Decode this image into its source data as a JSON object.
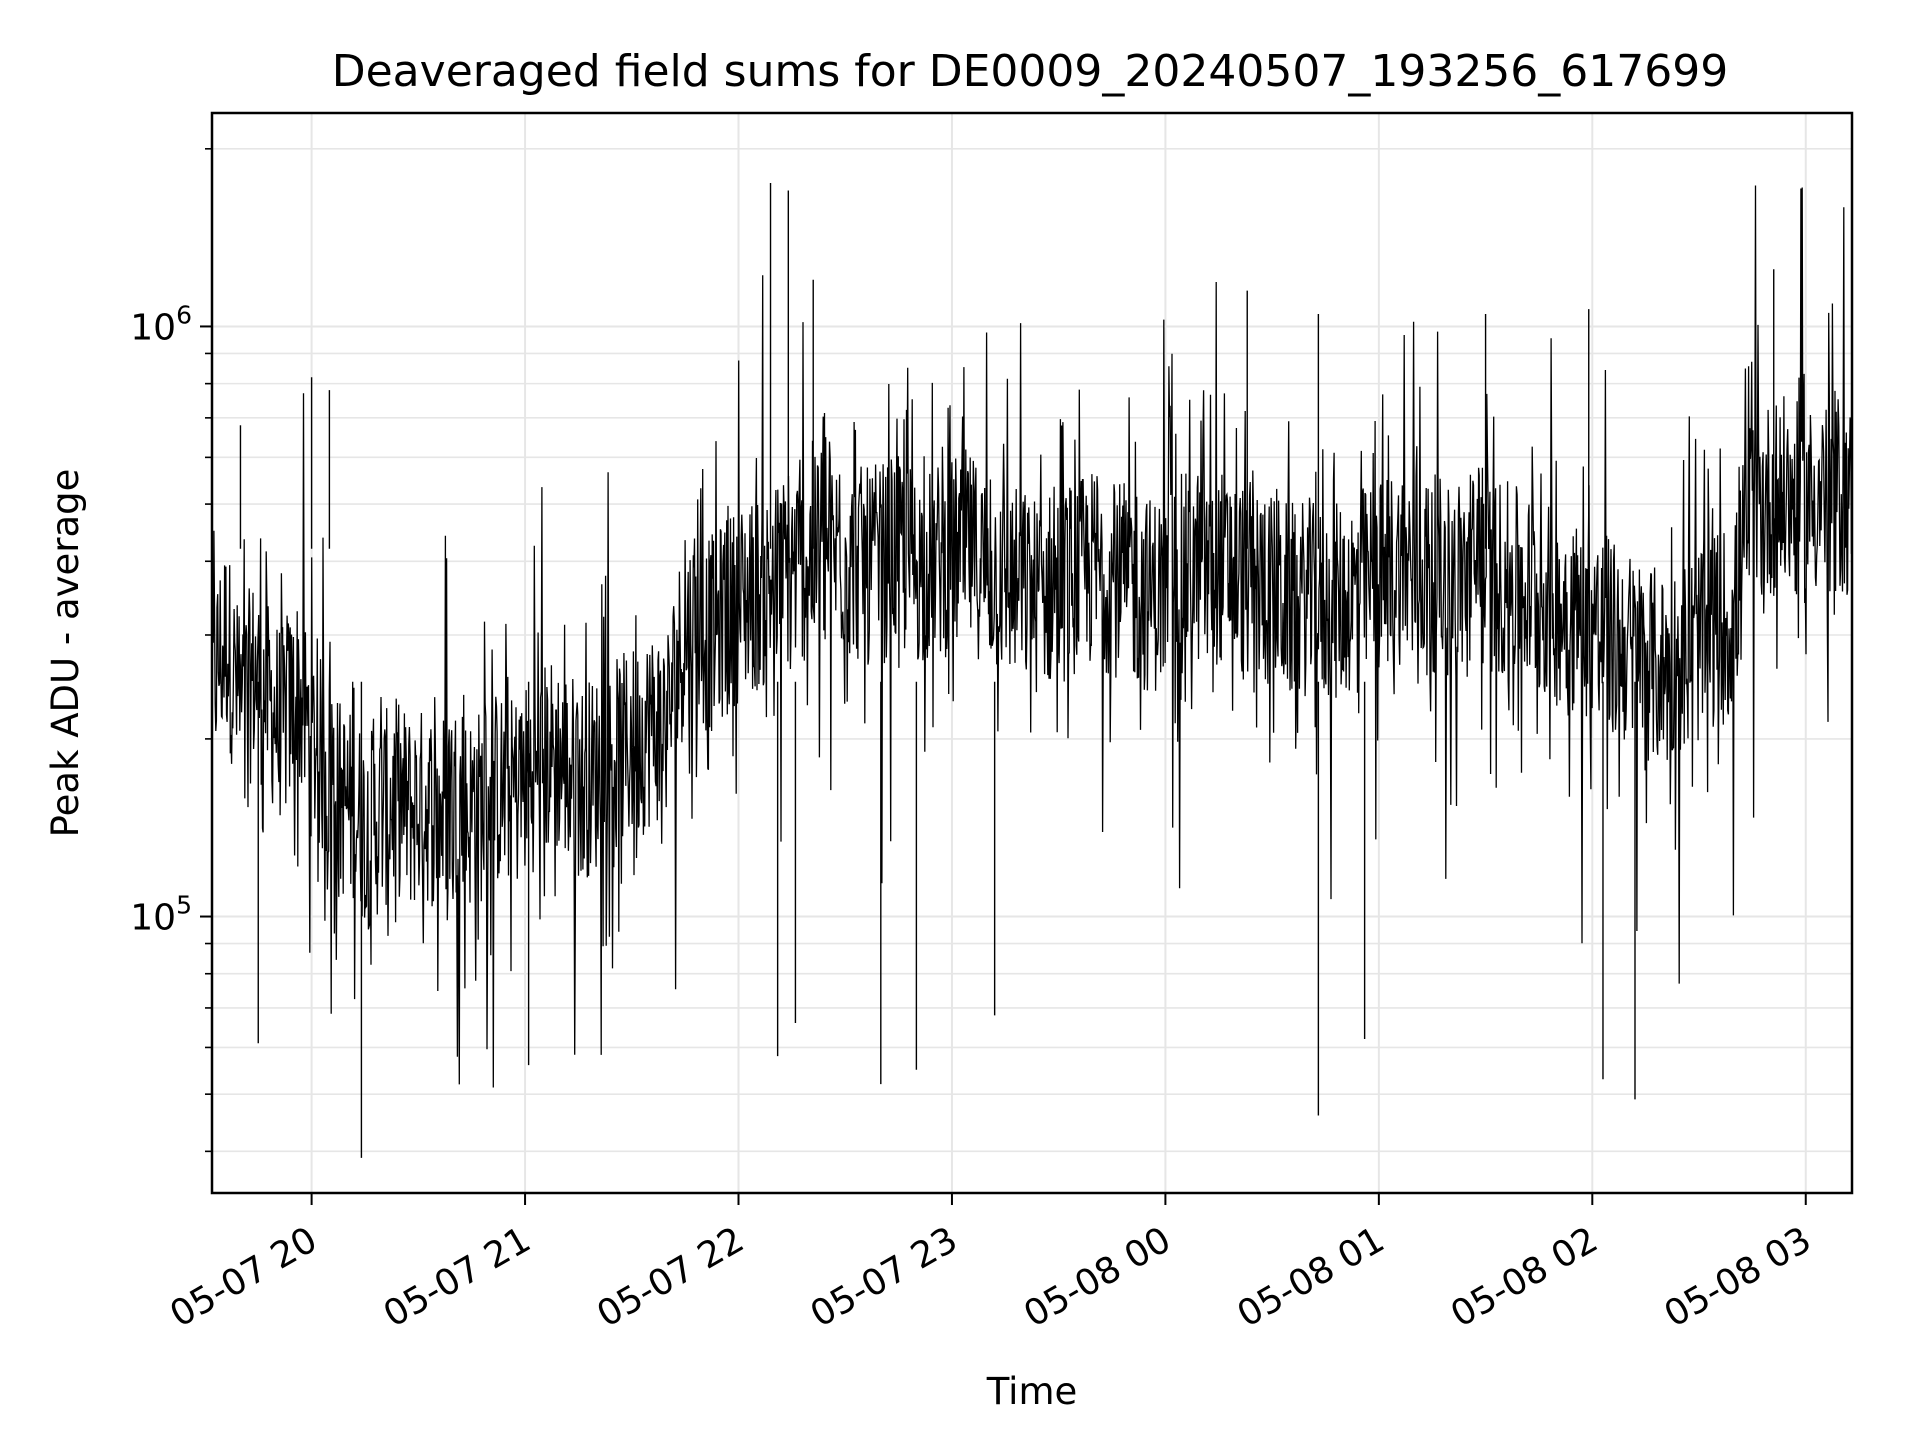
{
  "chart_data": {
    "type": "line",
    "title": "Deaveraged field sums for DE0009_20240507_193256_617699",
    "xlabel": "Time",
    "ylabel": "Peak ADU - average",
    "x_axis": {
      "kind": "datetime",
      "range": [
        "2024-05-07 19:32",
        "2024-05-08 03:13"
      ],
      "ticks": [
        {
          "t": "2024-05-07 20:00",
          "label": "05-07 20"
        },
        {
          "t": "2024-05-07 21:00",
          "label": "05-07 21"
        },
        {
          "t": "2024-05-07 22:00",
          "label": "05-07 22"
        },
        {
          "t": "2024-05-07 23:00",
          "label": "05-07 23"
        },
        {
          "t": "2024-05-08 00:00",
          "label": "05-08 00"
        },
        {
          "t": "2024-05-08 01:00",
          "label": "05-08 01"
        },
        {
          "t": "2024-05-08 02:00",
          "label": "05-08 02"
        },
        {
          "t": "2024-05-08 03:00",
          "label": "05-08 03"
        }
      ]
    },
    "y_axis": {
      "scale": "log",
      "range": [
        34000,
        2300000
      ],
      "ticks": [
        {
          "value": 100000,
          "base": "10",
          "exp": "5"
        },
        {
          "value": 1000000,
          "base": "10",
          "exp": "6"
        }
      ]
    },
    "grid": true,
    "line_color": "#000000",
    "series": [
      {
        "points": [
          [
            "2024-05-07 19:32",
            250000
          ],
          [
            "2024-05-07 19:36",
            300000
          ],
          [
            "2024-05-07 19:40",
            220000
          ],
          [
            "2024-05-07 19:44",
            260000
          ],
          [
            "2024-05-07 19:48",
            230000
          ],
          [
            "2024-05-07 19:52",
            210000
          ],
          [
            "2024-05-07 19:56",
            240000
          ],
          [
            "2024-05-07 20:00",
            200000
          ],
          [
            "2024-05-07 20:04",
            180000
          ],
          [
            "2024-05-07 20:08",
            160000
          ],
          [
            "2024-05-07 20:12",
            150000
          ],
          [
            "2024-05-07 20:16",
            140000
          ],
          [
            "2024-05-07 20:20",
            150000
          ],
          [
            "2024-05-07 20:24",
            160000
          ],
          [
            "2024-05-07 20:28",
            150000
          ],
          [
            "2024-05-07 20:32",
            155000
          ],
          [
            "2024-05-07 20:36",
            150000
          ],
          [
            "2024-05-07 20:40",
            160000
          ],
          [
            "2024-05-07 20:44",
            150000
          ],
          [
            "2024-05-07 20:48",
            155000
          ],
          [
            "2024-05-07 20:52",
            165000
          ],
          [
            "2024-05-07 20:56",
            160000
          ],
          [
            "2024-05-07 21:00",
            170000
          ],
          [
            "2024-05-07 21:04",
            180000
          ],
          [
            "2024-05-07 21:08",
            190000
          ],
          [
            "2024-05-07 21:12",
            180000
          ],
          [
            "2024-05-07 21:16",
            170000
          ],
          [
            "2024-05-07 21:20",
            175000
          ],
          [
            "2024-05-07 21:24",
            185000
          ],
          [
            "2024-05-07 21:28",
            190000
          ],
          [
            "2024-05-07 21:32",
            200000
          ],
          [
            "2024-05-07 21:36",
            210000
          ],
          [
            "2024-05-07 21:40",
            215000
          ],
          [
            "2024-05-07 21:44",
            290000
          ],
          [
            "2024-05-07 21:48",
            310000
          ],
          [
            "2024-05-07 21:52",
            300000
          ],
          [
            "2024-05-07 21:56",
            320000
          ],
          [
            "2024-05-07 22:00",
            340000
          ],
          [
            "2024-05-07 22:04",
            350000
          ],
          [
            "2024-05-07 22:08",
            360000
          ],
          [
            "2024-05-07 22:12",
            380000
          ],
          [
            "2024-05-07 22:16",
            390000
          ],
          [
            "2024-05-07 22:20",
            400000
          ],
          [
            "2024-05-07 22:24",
            420000
          ],
          [
            "2024-05-07 22:28",
            410000
          ],
          [
            "2024-05-07 22:32",
            400000
          ],
          [
            "2024-05-07 22:36",
            390000
          ],
          [
            "2024-05-07 22:40",
            400000
          ],
          [
            "2024-05-07 22:44",
            410000
          ],
          [
            "2024-05-07 22:48",
            400000
          ],
          [
            "2024-05-07 22:52",
            390000
          ],
          [
            "2024-05-07 22:56",
            400000
          ],
          [
            "2024-05-07 23:00",
            410000
          ],
          [
            "2024-05-07 23:04",
            420000
          ],
          [
            "2024-05-07 23:08",
            400000
          ],
          [
            "2024-05-07 23:12",
            380000
          ],
          [
            "2024-05-07 23:16",
            370000
          ],
          [
            "2024-05-07 23:20",
            360000
          ],
          [
            "2024-05-07 23:24",
            350000
          ],
          [
            "2024-05-07 23:28",
            360000
          ],
          [
            "2024-05-07 23:32",
            370000
          ],
          [
            "2024-05-07 23:36",
            380000
          ],
          [
            "2024-05-07 23:40",
            390000
          ],
          [
            "2024-05-07 23:44",
            380000
          ],
          [
            "2024-05-07 23:48",
            370000
          ],
          [
            "2024-05-07 23:52",
            360000
          ],
          [
            "2024-05-07 23:56",
            350000
          ],
          [
            "2024-05-08 00:00",
            360000
          ],
          [
            "2024-05-08 00:04",
            380000
          ],
          [
            "2024-05-08 00:08",
            390000
          ],
          [
            "2024-05-08 00:12",
            400000
          ],
          [
            "2024-05-08 00:16",
            390000
          ],
          [
            "2024-05-08 00:20",
            380000
          ],
          [
            "2024-05-08 00:24",
            370000
          ],
          [
            "2024-05-08 00:28",
            360000
          ],
          [
            "2024-05-08 00:32",
            350000
          ],
          [
            "2024-05-08 00:36",
            340000
          ],
          [
            "2024-05-08 00:40",
            350000
          ],
          [
            "2024-05-08 00:44",
            330000
          ],
          [
            "2024-05-08 00:48",
            340000
          ],
          [
            "2024-05-08 00:52",
            350000
          ],
          [
            "2024-05-08 00:56",
            360000
          ],
          [
            "2024-05-08 01:00",
            380000
          ],
          [
            "2024-05-08 01:04",
            390000
          ],
          [
            "2024-05-08 01:08",
            400000
          ],
          [
            "2024-05-08 01:12",
            390000
          ],
          [
            "2024-05-08 01:16",
            380000
          ],
          [
            "2024-05-08 01:20",
            370000
          ],
          [
            "2024-05-08 01:24",
            380000
          ],
          [
            "2024-05-08 01:28",
            390000
          ],
          [
            "2024-05-08 01:32",
            380000
          ],
          [
            "2024-05-08 01:36",
            370000
          ],
          [
            "2024-05-08 01:40",
            360000
          ],
          [
            "2024-05-08 01:44",
            350000
          ],
          [
            "2024-05-08 01:48",
            340000
          ],
          [
            "2024-05-08 01:52",
            330000
          ],
          [
            "2024-05-08 01:56",
            320000
          ],
          [
            "2024-05-08 02:00",
            310000
          ],
          [
            "2024-05-08 02:04",
            300000
          ],
          [
            "2024-05-08 02:08",
            290000
          ],
          [
            "2024-05-08 02:12",
            280000
          ],
          [
            "2024-05-08 02:16",
            270000
          ],
          [
            "2024-05-08 02:20",
            260000
          ],
          [
            "2024-05-08 02:24",
            270000
          ],
          [
            "2024-05-08 02:28",
            280000
          ],
          [
            "2024-05-08 02:32",
            300000
          ],
          [
            "2024-05-08 02:36",
            310000
          ],
          [
            "2024-05-08 02:40",
            320000
          ],
          [
            "2024-05-08 02:44",
            480000
          ],
          [
            "2024-05-08 02:48",
            500000
          ],
          [
            "2024-05-08 02:52",
            520000
          ],
          [
            "2024-05-08 02:56",
            510000
          ],
          [
            "2024-05-08 03:00",
            500000
          ],
          [
            "2024-05-08 03:04",
            520000
          ],
          [
            "2024-05-08 03:08",
            530000
          ],
          [
            "2024-05-08 03:13",
            500000
          ]
        ],
        "spikes": [
          [
            "2024-05-07 19:40",
            680000
          ],
          [
            "2024-05-07 19:45",
            61000
          ],
          [
            "2024-05-07 20:00",
            820000
          ],
          [
            "2024-05-07 20:05",
            780000
          ],
          [
            "2024-05-07 20:14",
            39000
          ],
          [
            "2024-05-07 21:01",
            56000
          ],
          [
            "2024-05-07 22:09",
            1750000
          ],
          [
            "2024-05-07 22:11",
            58000
          ],
          [
            "2024-05-07 22:14",
            1700000
          ],
          [
            "2024-05-07 22:16",
            66000
          ],
          [
            "2024-05-07 22:21",
            1200000
          ],
          [
            "2024-05-07 22:40",
            52000
          ],
          [
            "2024-05-07 22:50",
            55000
          ],
          [
            "2024-05-07 23:12",
            68000
          ],
          [
            "2024-05-08 00:23",
            1150000
          ],
          [
            "2024-05-08 00:43",
            1050000
          ],
          [
            "2024-05-08 00:43",
            46000
          ],
          [
            "2024-05-08 00:56",
            62000
          ],
          [
            "2024-05-08 01:30",
            1050000
          ],
          [
            "2024-05-08 01:59",
            1070000
          ],
          [
            "2024-05-08 02:03",
            53000
          ],
          [
            "2024-05-08 02:12",
            49000
          ],
          [
            "2024-05-08 02:51",
            1250000
          ]
        ]
      }
    ]
  }
}
